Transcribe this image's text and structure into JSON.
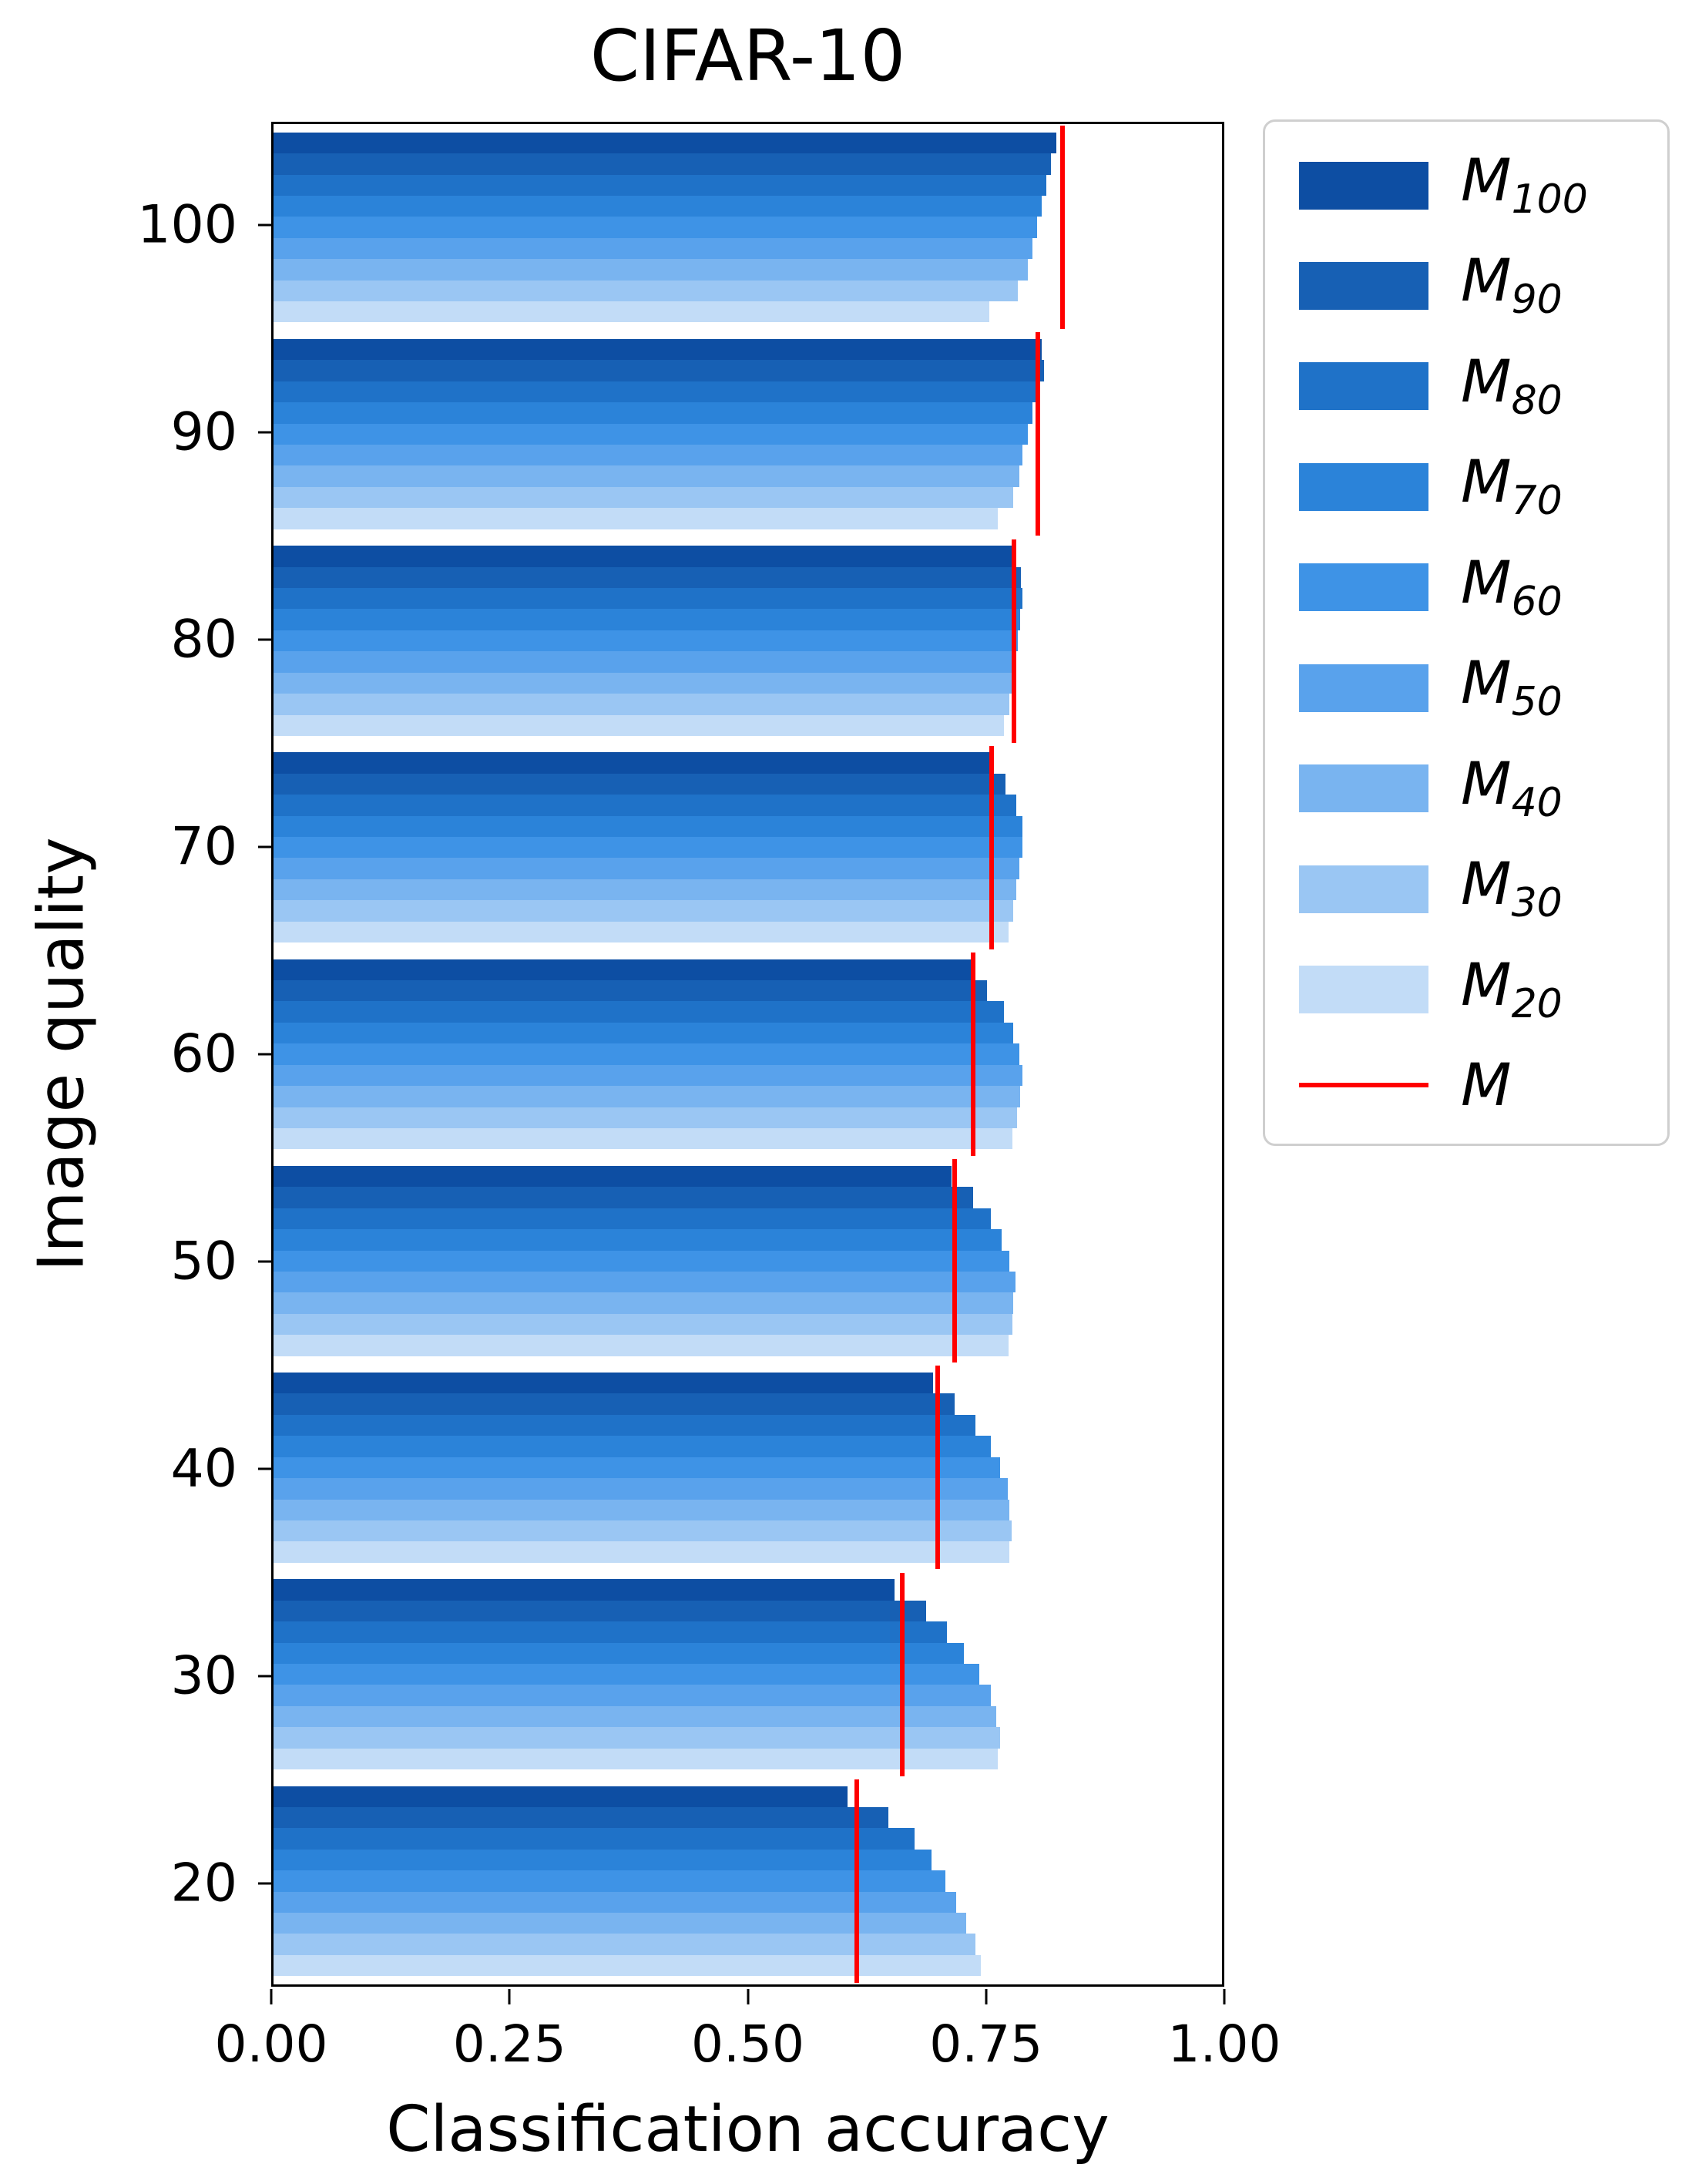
{
  "chart_data": {
    "type": "bar",
    "orientation": "horizontal",
    "title": "CIFAR-10",
    "xlabel": "Classification accuracy",
    "ylabel": "Image quality",
    "xlim": [
      0.0,
      1.0
    ],
    "xticks": [
      0.0,
      0.25,
      0.5,
      0.75,
      1.0
    ],
    "xtick_labels": [
      "0.00",
      "0.25",
      "0.50",
      "0.75",
      "1.00"
    ],
    "categories": [
      "100",
      "90",
      "80",
      "70",
      "60",
      "50",
      "40",
      "30",
      "20"
    ],
    "legend_position": "upper right",
    "grid": false,
    "series": [
      {
        "name": "M100",
        "label_base": "M",
        "label_sub": "100",
        "color": "#0d4ea3",
        "values": [
          0.825,
          0.81,
          0.78,
          0.755,
          0.735,
          0.715,
          0.695,
          0.655,
          0.605
        ]
      },
      {
        "name": "M90",
        "label_base": "M",
        "label_sub": "90",
        "color": "#1760b4",
        "values": [
          0.82,
          0.812,
          0.788,
          0.772,
          0.752,
          0.738,
          0.718,
          0.688,
          0.648
        ]
      },
      {
        "name": "M80",
        "label_base": "M",
        "label_sub": "80",
        "color": "#1f72c8",
        "values": [
          0.815,
          0.806,
          0.79,
          0.783,
          0.77,
          0.756,
          0.74,
          0.71,
          0.676
        ]
      },
      {
        "name": "M70",
        "label_base": "M",
        "label_sub": "70",
        "color": "#2b83d9",
        "values": [
          0.81,
          0.8,
          0.787,
          0.79,
          0.78,
          0.768,
          0.756,
          0.728,
          0.694
        ]
      },
      {
        "name": "M60",
        "label_base": "M",
        "label_sub": "60",
        "color": "#3e93e6",
        "values": [
          0.805,
          0.795,
          0.785,
          0.79,
          0.786,
          0.776,
          0.766,
          0.744,
          0.708
        ]
      },
      {
        "name": "M50",
        "label_base": "M",
        "label_sub": "50",
        "color": "#59a2ec",
        "values": [
          0.8,
          0.79,
          0.781,
          0.786,
          0.79,
          0.782,
          0.774,
          0.756,
          0.72
        ]
      },
      {
        "name": "M40",
        "label_base": "M",
        "label_sub": "40",
        "color": "#79b4f0",
        "values": [
          0.795,
          0.786,
          0.779,
          0.783,
          0.787,
          0.78,
          0.776,
          0.762,
          0.73
        ]
      },
      {
        "name": "M30",
        "label_base": "M",
        "label_sub": "30",
        "color": "#9ac6f3",
        "values": [
          0.785,
          0.78,
          0.776,
          0.78,
          0.784,
          0.779,
          0.778,
          0.766,
          0.74
        ]
      },
      {
        "name": "M20",
        "label_base": "M",
        "label_sub": "20",
        "color": "#c2dcf7",
        "values": [
          0.755,
          0.764,
          0.77,
          0.775,
          0.779,
          0.775,
          0.776,
          0.764,
          0.746
        ]
      }
    ],
    "reference": {
      "name": "M",
      "label_base": "M",
      "label_sub": "",
      "color": "#ff0000",
      "values": [
        0.832,
        0.806,
        0.781,
        0.757,
        0.738,
        0.718,
        0.7,
        0.663,
        0.615
      ]
    }
  }
}
